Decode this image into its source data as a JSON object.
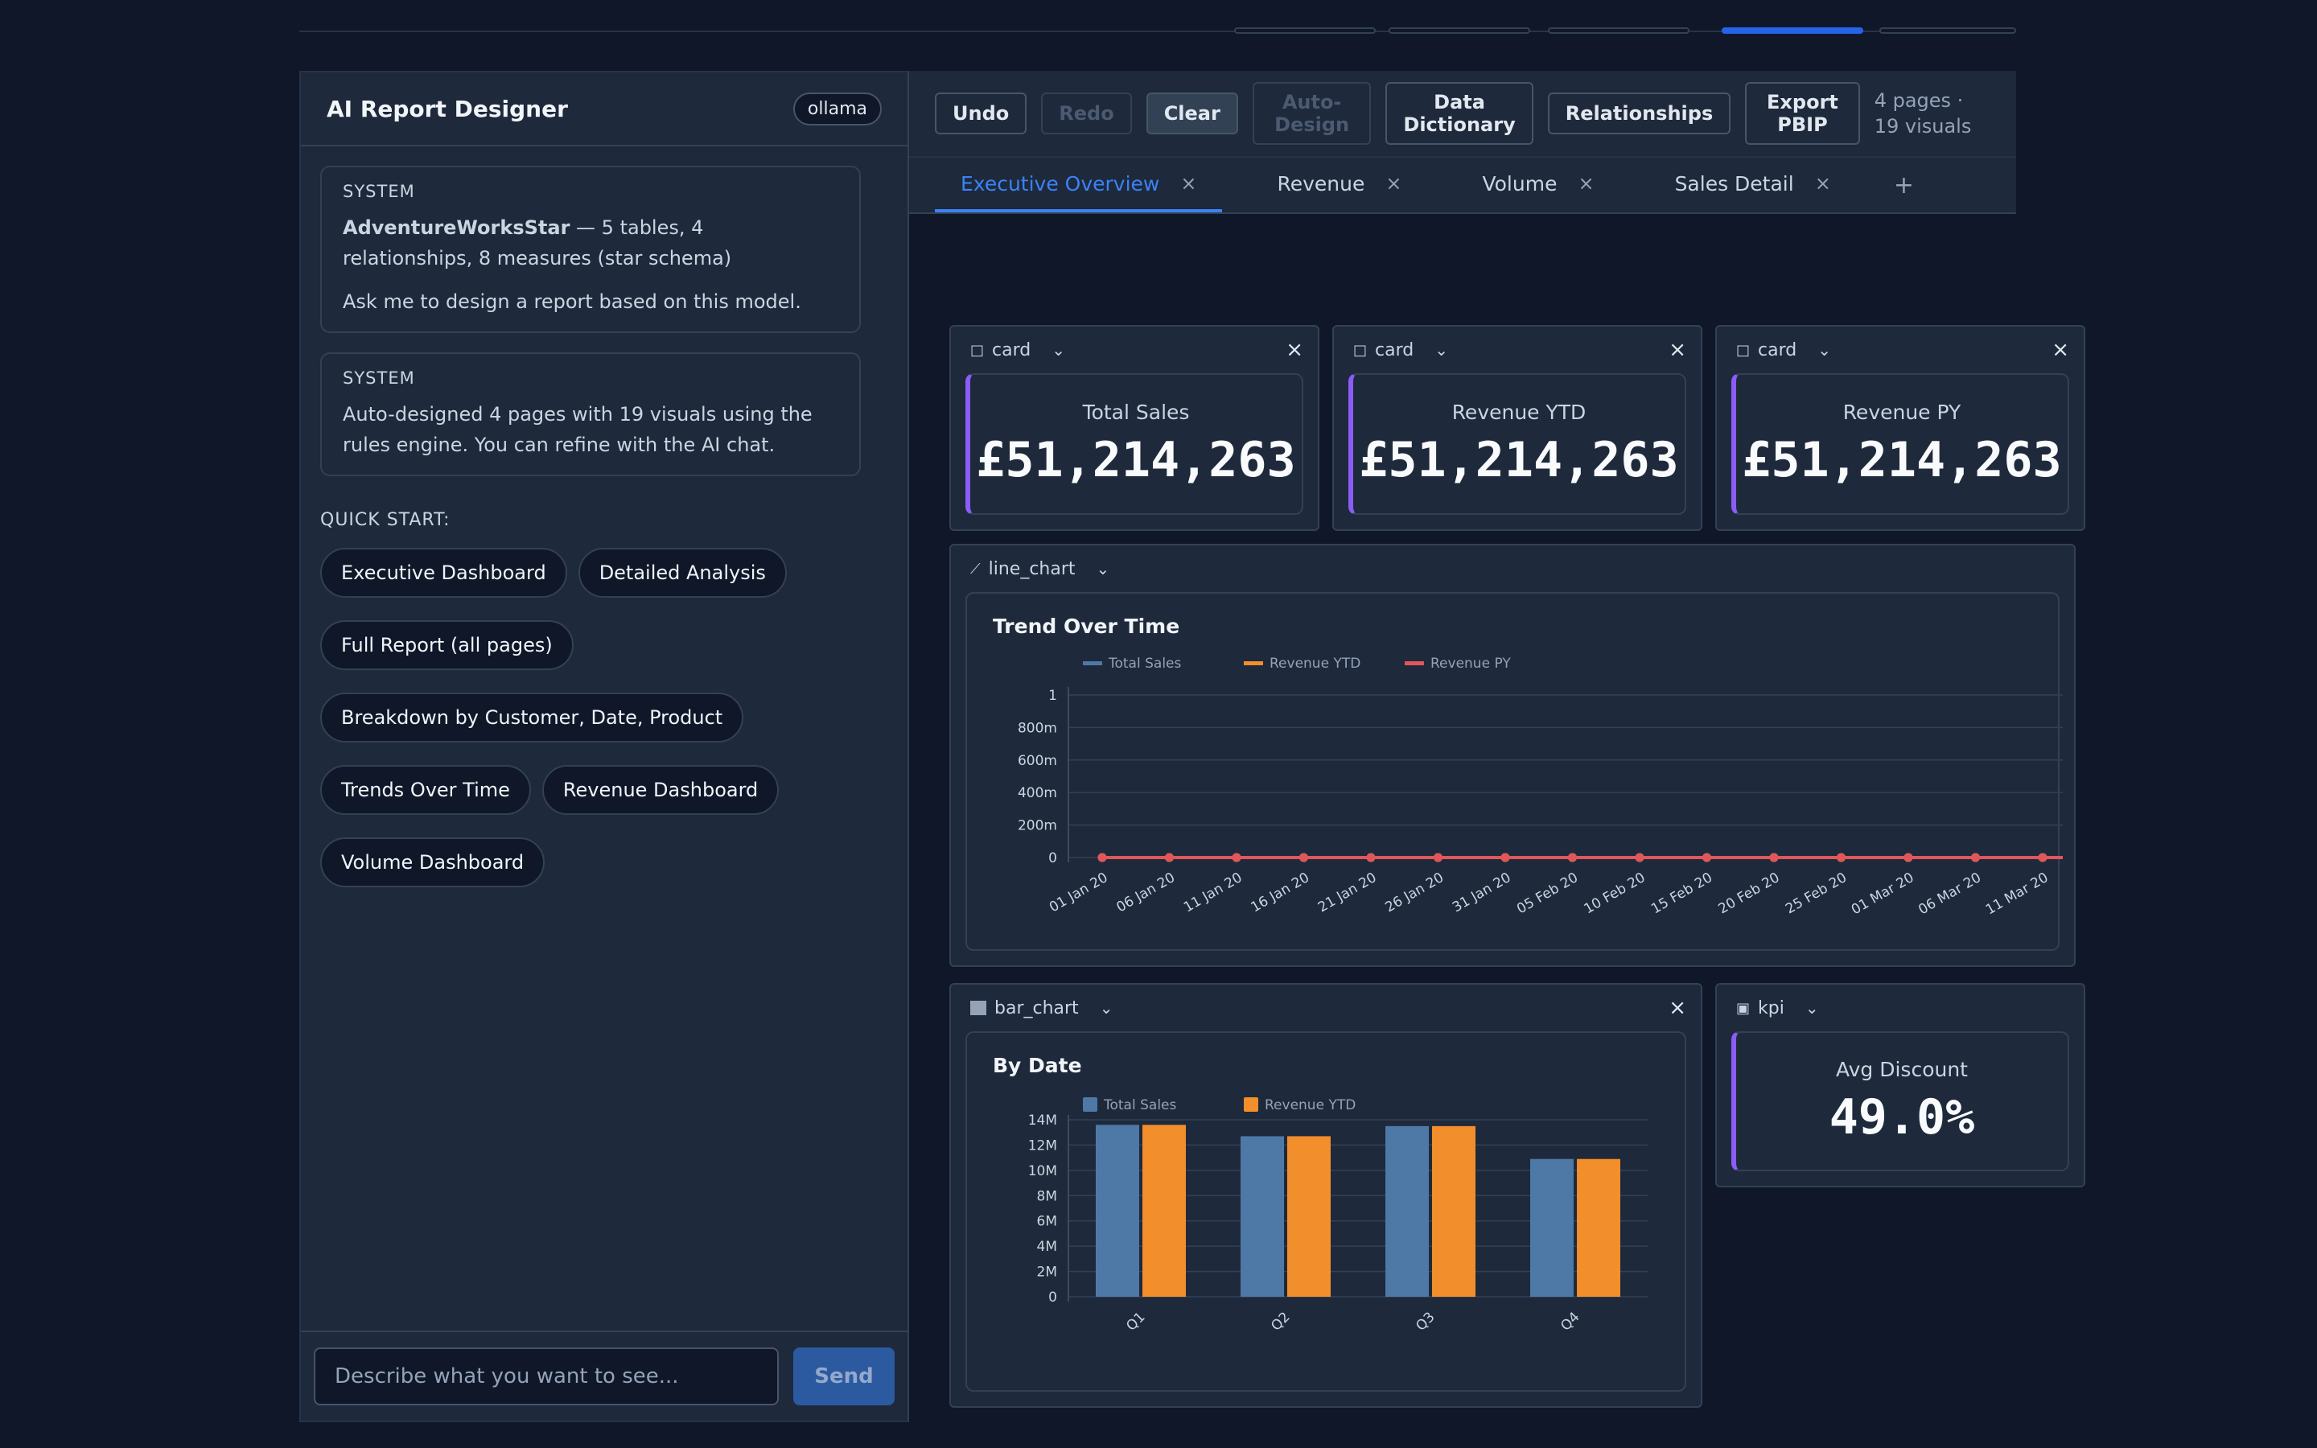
{
  "left_panel": {
    "title": "AI Report Designer",
    "provider_badge": "ollama",
    "messages": [
      {
        "role": "SYSTEM",
        "model_name": "AdventureWorksStar",
        "model_desc": " — 5 tables, 4 relationships, 8 measures (star schema)",
        "prompt": "Ask me to design a report based on this model."
      },
      {
        "role": "SYSTEM",
        "text": "Auto-designed 4 pages with 19 visuals using the rules engine. You can refine with the AI chat."
      }
    ],
    "quick_start_label": "QUICK START:",
    "quick_start": [
      "Executive Dashboard",
      "Detailed Analysis",
      "Full Report (all pages)",
      "Breakdown by Customer, Date, Product",
      "Trends Over Time",
      "Revenue Dashboard",
      "Volume Dashboard"
    ],
    "input_placeholder": "Describe what you want to see...",
    "send_label": "Send"
  },
  "toolbar": {
    "undo": "Undo",
    "redo": "Redo",
    "clear": "Clear",
    "auto_design": "Auto-Design",
    "data_dictionary": "Data Dictionary",
    "relationships": "Relationships",
    "export": "Export PBIP",
    "summary": "4 pages · 19 visuals"
  },
  "tabs": [
    {
      "label": "Executive Overview",
      "close": "×"
    },
    {
      "label": "Revenue",
      "close": "×"
    },
    {
      "label": "Volume",
      "close": "×"
    },
    {
      "label": "Sales Detail",
      "close": "×"
    }
  ],
  "tab_add": "+",
  "icons": {
    "close": "×",
    "chevron": "chevron-down-icon",
    "card": "square-icon",
    "line": "line-chart-icon",
    "bar": "bar-chart-icon",
    "kpi": "kpi-icon"
  },
  "colors": {
    "accent": "#3b82f6",
    "card_accent": "#8b5cf6",
    "total_sales": "#4e79a7",
    "revenue_ytd": "#f28e2b",
    "revenue_py": "#e15759"
  },
  "visuals": {
    "cards": [
      {
        "type": "card",
        "label": "Total Sales",
        "value": "£51,214,263"
      },
      {
        "type": "card",
        "label": "Revenue YTD",
        "value": "£51,214,263"
      },
      {
        "type": "card",
        "label": "Revenue PY",
        "value": "£51,214,263"
      }
    ],
    "line": {
      "type": "line_chart"
    },
    "bar": {
      "type": "bar_chart"
    },
    "kpi": {
      "type": "kpi",
      "label": "Avg Discount",
      "value": "49.0%"
    }
  },
  "chart_data": [
    {
      "type": "line",
      "title": "Trend Over Time",
      "x": [
        "01 Jan 20",
        "06 Jan 20",
        "11 Jan 20",
        "16 Jan 20",
        "21 Jan 20",
        "26 Jan 20",
        "31 Jan 20",
        "05 Feb 20",
        "10 Feb 20",
        "15 Feb 20",
        "20 Feb 20",
        "25 Feb 20",
        "01 Mar 20",
        "06 Mar 20",
        "11 Mar 20"
      ],
      "series": [
        {
          "name": "Total Sales",
          "values": [
            0,
            0,
            0,
            0,
            0,
            0,
            0,
            0,
            0,
            0,
            0,
            0,
            0,
            0,
            0
          ]
        },
        {
          "name": "Revenue YTD",
          "values": [
            0,
            0,
            0,
            0,
            0,
            0,
            0,
            0,
            0,
            0,
            0,
            0,
            0,
            0,
            0
          ]
        },
        {
          "name": "Revenue PY",
          "values": [
            0,
            0,
            0,
            0,
            0,
            0,
            0,
            0,
            0,
            0,
            0,
            0,
            0,
            0,
            0
          ]
        }
      ],
      "y_ticks": [
        "0",
        "200m",
        "400m",
        "600m",
        "800m",
        "1"
      ],
      "ylim": [
        0,
        1
      ],
      "grid": true,
      "legend": "top-left"
    },
    {
      "type": "bar",
      "title": "By Date",
      "categories": [
        "Q1",
        "Q2",
        "Q3",
        "Q4"
      ],
      "series": [
        {
          "name": "Total Sales",
          "values": [
            13.6,
            12.7,
            13.5,
            10.9
          ]
        },
        {
          "name": "Revenue YTD",
          "values": [
            13.6,
            12.7,
            13.5,
            10.9
          ]
        }
      ],
      "y_ticks": [
        "0",
        "2M",
        "4M",
        "6M",
        "8M",
        "10M",
        "12M",
        "14M"
      ],
      "ylim": [
        0,
        14
      ],
      "grid": true,
      "legend": "top-left"
    }
  ]
}
